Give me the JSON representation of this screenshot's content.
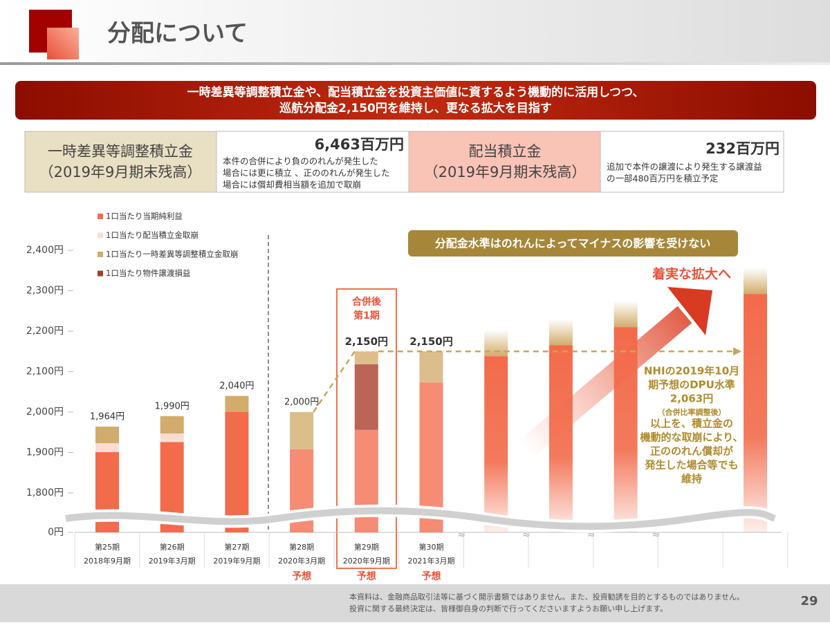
{
  "header": {
    "title": "分配について"
  },
  "banner": {
    "lines": [
      "一時差異等調整積立金や、配当積立金を投資主価値に資するよう機動的に活用しつつ、",
      "巡航分配金2,150円を維持し、更なる拡大を目指す"
    ]
  },
  "info_table": {
    "cells": [
      {
        "title": "一時差異等調整積立金",
        "subtitle": "（2019年9月期末残高）"
      },
      {
        "amount": "6,463百万円",
        "lines": [
          "本件の合併により負ののれんが発生した",
          "場合には更に積立 、正ののれんが発生した",
          "場合には償却費相当額を追加で取崩"
        ]
      },
      {
        "title": "配当積立金",
        "subtitle": "（2019年9月期末残高）"
      },
      {
        "amount": "232百万円",
        "lines": [
          "追加で本件の譲渡により発生する譲渡益",
          "の一部480百万円を積立予定"
        ]
      }
    ]
  },
  "chart_data": {
    "type": "bar",
    "stacked": true,
    "categories": [
      "第25期",
      "第26期",
      "第27期",
      "第28期",
      "第29期",
      "第30期",
      null,
      null,
      null,
      null,
      null
    ],
    "category_dates": [
      "2018年9月期",
      "2019年3月期",
      "2019年9月期",
      "2020年3月期",
      "2020年9月期",
      "2021年3月期",
      null,
      null,
      null,
      null,
      null
    ],
    "forecast_labels": [
      null,
      null,
      null,
      "予想",
      "予想",
      "予想",
      null,
      null,
      null,
      null,
      null
    ],
    "series": [
      {
        "name": "1口当たり当期純利益",
        "color": "#f26b4b",
        "values": [
          1901,
          1926,
          2000,
          1908,
          1956,
          2073,
          null,
          null,
          null,
          null,
          null
        ]
      },
      {
        "name": "1口当たり配当積立金取崩",
        "color": "#fbdcd3",
        "values": [
          22,
          21,
          null,
          null,
          null,
          null,
          null,
          null,
          null,
          null,
          null
        ]
      },
      {
        "name": "1口当たり一時差異等調整積立金取崩",
        "color": "#d2ac6c",
        "values": [
          41,
          43,
          40,
          92,
          32,
          77,
          null,
          null,
          null,
          null,
          null
        ]
      },
      {
        "name": "1口当たり物件譲渡損益",
        "color": "#a63a28",
        "values": [
          null,
          null,
          null,
          null,
          162,
          null,
          null,
          null,
          null,
          null,
          null
        ]
      }
    ],
    "stack_order": [
      0,
      1,
      3,
      2
    ],
    "projection_values": [
      null,
      null,
      null,
      null,
      null,
      null,
      2138,
      2165,
      2210,
      null,
      2292
    ],
    "projection_color": "#f26b4b",
    "totals": [
      1964,
      1990,
      2040,
      2000,
      2150,
      2150,
      null,
      null,
      null,
      null,
      null
    ],
    "value_labels": [
      "1,964円",
      "1,990円",
      "2,040円",
      "2,000円",
      "2,150円",
      "2,150円",
      null,
      null,
      null,
      null,
      null
    ],
    "ylim": [
      0,
      2400
    ],
    "yticks": [
      {
        "value": 0,
        "label": "0円"
      },
      {
        "value": 1800,
        "label": "1,800円"
      },
      {
        "value": 1900,
        "label": "1,900円"
      },
      {
        "value": 2000,
        "label": "2,000円"
      },
      {
        "value": 2100,
        "label": "2,100円"
      },
      {
        "value": 2200,
        "label": "2,200円"
      },
      {
        "value": 2300,
        "label": "2,300円"
      },
      {
        "value": 2400,
        "label": "2,400円"
      }
    ],
    "grid": false,
    "legend": "top-left",
    "annotations": {
      "highlight_label": [
        "合併後",
        "第1期"
      ],
      "callout": "分配金水準はのれんによってマイナスの影響を受けない",
      "arrow_label": "着実な拡大へ",
      "note_lines": [
        "NHIの2019年10月",
        "期予想のDPU水準",
        "2,063円",
        "（合併比率調整後）",
        "以上を、積立金の",
        "機動的な取崩により、",
        "正ののれん償却が",
        "発生した場合等でも",
        "維持"
      ]
    }
  },
  "footer": {
    "lines": [
      "本資料は、金融商品取引法等に基づく開示書類ではありません。また、投資勧誘を目的とするものではありません。",
      "投資に関する最終決定は、皆様御自身の判断で行ってくださいますようお願い申し上げます。"
    ],
    "page_number": "29"
  }
}
